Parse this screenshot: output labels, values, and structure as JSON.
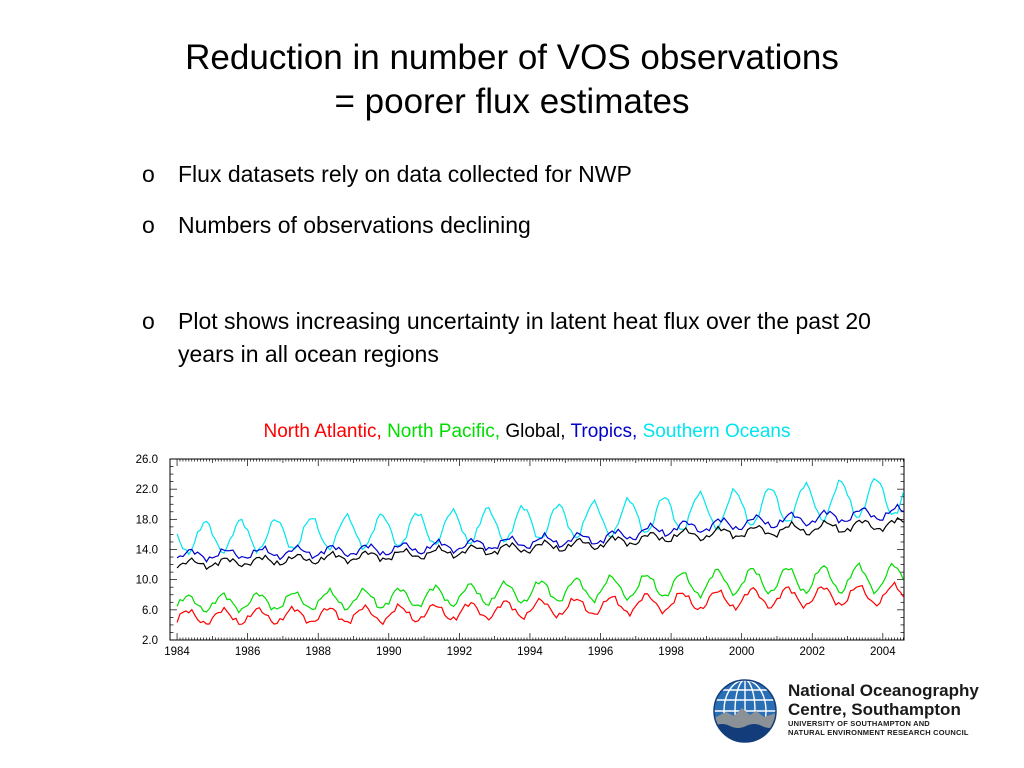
{
  "title": {
    "line1": "Reduction in number of VOS observations",
    "line2": "= poorer flux estimates"
  },
  "bullets": [
    {
      "marker": "o",
      "text": "Flux datasets rely on data collected for NWP"
    },
    {
      "marker": "o",
      "text": "Numbers of observations declining"
    },
    {
      "marker": "o",
      "text": "Plot shows increasing uncertainty in latent heat flux over the past 20 years in all ocean regions"
    }
  ],
  "legend": [
    {
      "label": "North Atlantic,",
      "color": "#ff0000"
    },
    {
      "label": "North Pacific,",
      "color": "#00dd00"
    },
    {
      "label": "Global,",
      "color": "#000000"
    },
    {
      "label": "Tropics,",
      "color": "#0000cc"
    },
    {
      "label": "Southern Oceans",
      "color": "#00e5ee"
    }
  ],
  "chart_data": {
    "type": "line",
    "xlim": [
      1983.8,
      2004.6
    ],
    "ylim": [
      2.0,
      26.0
    ],
    "yticks": [
      "2.0",
      "6.0",
      "10.0",
      "14.0",
      "18.0",
      "22.0",
      "26.0"
    ],
    "xticks": [
      "1984",
      "1986",
      "1988",
      "1990",
      "1992",
      "1994",
      "1996",
      "1998",
      "2000",
      "2002",
      "2004"
    ],
    "grid": false,
    "sampling": "monthly, seasonal cycle approximated",
    "series": [
      {
        "name": "Southern Oceans",
        "color": "#00e5ee",
        "trend": [
          [
            1984,
            15.5
          ],
          [
            1990,
            16.5
          ],
          [
            1996,
            18.0
          ],
          [
            2000,
            19.5
          ],
          [
            2004,
            21.0
          ]
        ],
        "amplitude": [
          [
            1984,
            2.0
          ],
          [
            2004,
            2.5
          ]
        ],
        "phase": 0.55
      },
      {
        "name": "Tropics",
        "color": "#0000cc",
        "trend": [
          [
            1984,
            13.2
          ],
          [
            1990,
            14.0
          ],
          [
            1996,
            15.5
          ],
          [
            1998,
            16.8
          ],
          [
            2004,
            18.8
          ]
        ],
        "amplitude": [
          [
            1984,
            0.6
          ],
          [
            2004,
            0.8
          ]
        ],
        "phase": 0.15
      },
      {
        "name": "Global",
        "color": "#000000",
        "trend": [
          [
            1984,
            12.0
          ],
          [
            1990,
            13.2
          ],
          [
            1996,
            14.8
          ],
          [
            1998,
            15.8
          ],
          [
            2004,
            17.3
          ]
        ],
        "amplitude": [
          [
            1984,
            0.5
          ],
          [
            2004,
            0.7
          ]
        ],
        "phase": 0.15
      },
      {
        "name": "North Pacific",
        "color": "#00dd00",
        "trend": [
          [
            1984,
            6.8
          ],
          [
            1990,
            7.5
          ],
          [
            1996,
            8.8
          ],
          [
            2000,
            9.8
          ],
          [
            2004,
            10.2
          ]
        ],
        "amplitude": [
          [
            1984,
            1.0
          ],
          [
            2004,
            1.8
          ]
        ],
        "phase": 0.05
      },
      {
        "name": "North Atlantic",
        "color": "#ff0000",
        "trend": [
          [
            1984,
            5.0
          ],
          [
            1990,
            5.4
          ],
          [
            1996,
            6.5
          ],
          [
            2000,
            7.5
          ],
          [
            2004,
            8.0
          ]
        ],
        "amplitude": [
          [
            1984,
            0.9
          ],
          [
            2004,
            1.3
          ]
        ],
        "phase": 0.05
      }
    ]
  },
  "logo": {
    "line1": "National Oceanography",
    "line2": "Centre, Southampton",
    "line3": "UNIVERSITY OF SOUTHAMPTON AND",
    "line4": "NATURAL ENVIRONMENT RESEARCH COUNCIL"
  }
}
